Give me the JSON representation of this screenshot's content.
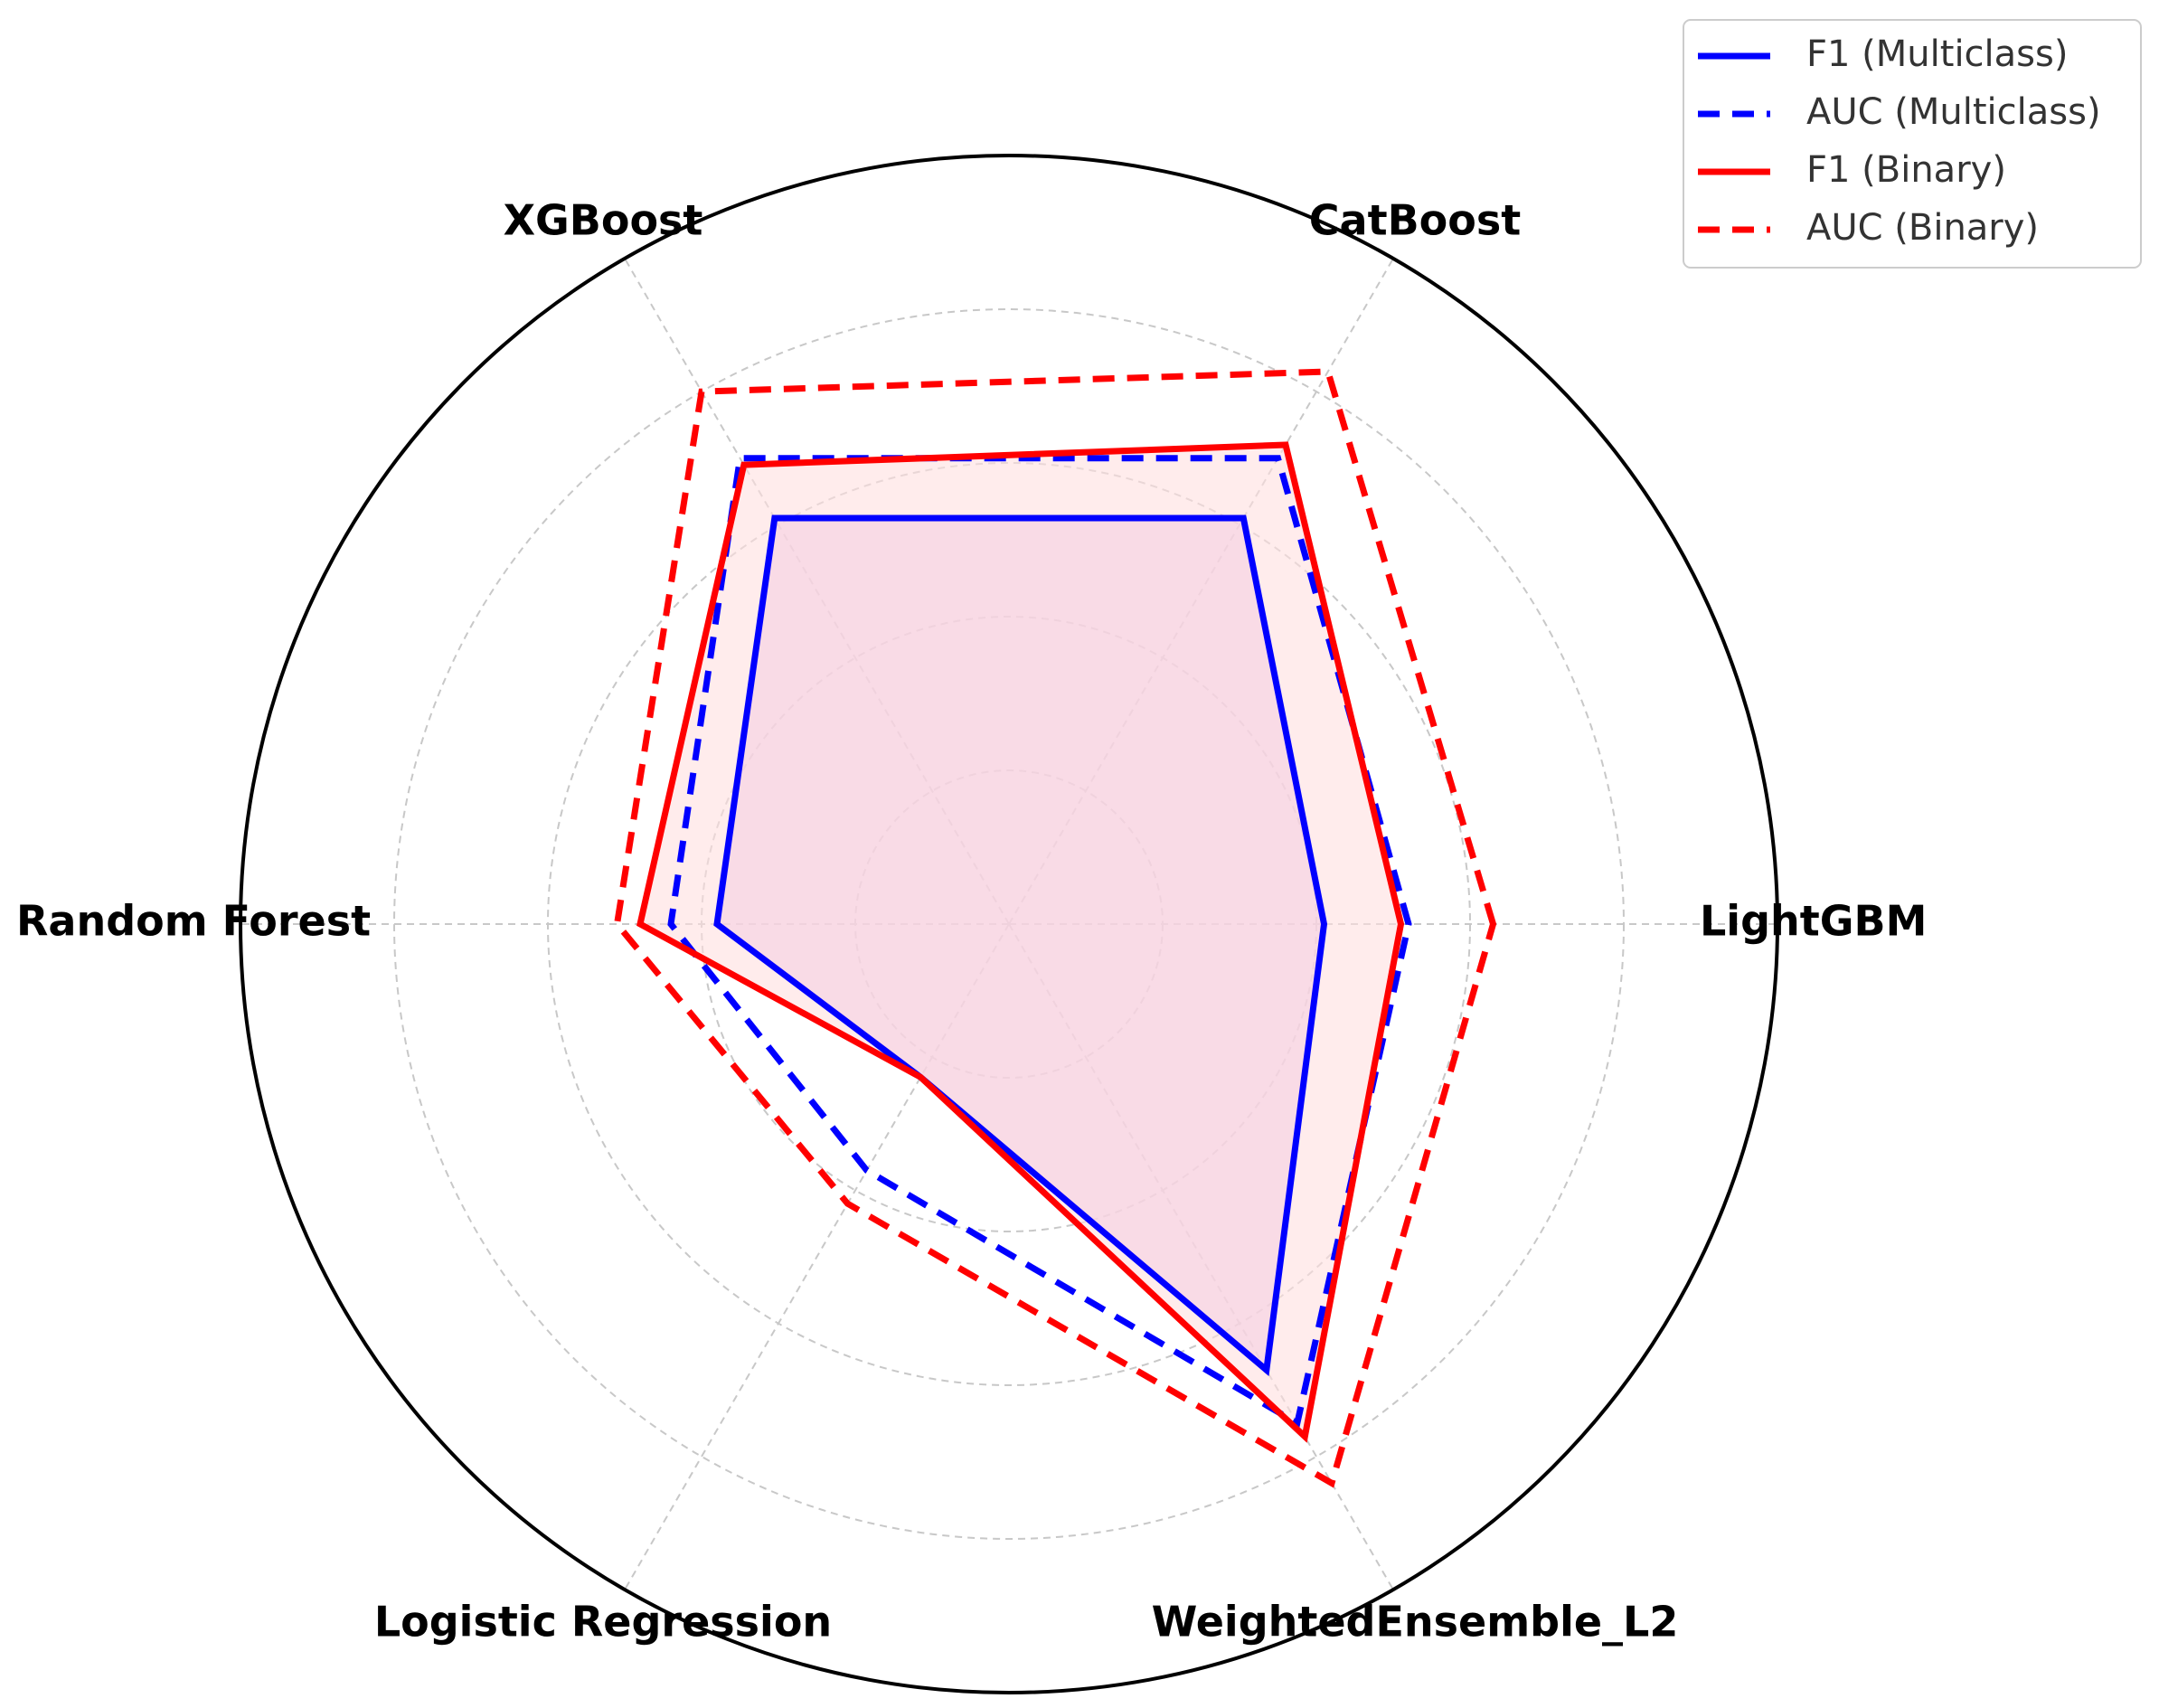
{
  "chart_data": {
    "type": "radar",
    "categories": [
      "LightGBM",
      "CatBoost",
      "XGBoost",
      "Random Forest",
      "Logistic Regression",
      "WeightedEnsemble_L2"
    ],
    "rlim": [
      0,
      1
    ],
    "grid": true,
    "legend_position": "top-right",
    "series": [
      {
        "name": "F1 (Multiclass)",
        "color": "#0000ff",
        "style": "solid",
        "fill": "#e6b8e6",
        "values": [
          0.41,
          0.61,
          0.61,
          0.38,
          0.23,
          0.67
        ]
      },
      {
        "name": "AUC (Multiclass)",
        "color": "#0000ff",
        "style": "dashed",
        "fill": null,
        "values": [
          0.52,
          0.7,
          0.7,
          0.44,
          0.37,
          0.75
        ]
      },
      {
        "name": "F1 (Binary)",
        "color": "#ff0000",
        "style": "solid",
        "fill": "#ffe0e0",
        "values": [
          0.51,
          0.72,
          0.69,
          0.48,
          0.23,
          0.77
        ]
      },
      {
        "name": "AUC (Binary)",
        "color": "#ff0000",
        "style": "dashed",
        "fill": null,
        "values": [
          0.63,
          0.83,
          0.8,
          0.51,
          0.42,
          0.84
        ]
      }
    ]
  }
}
